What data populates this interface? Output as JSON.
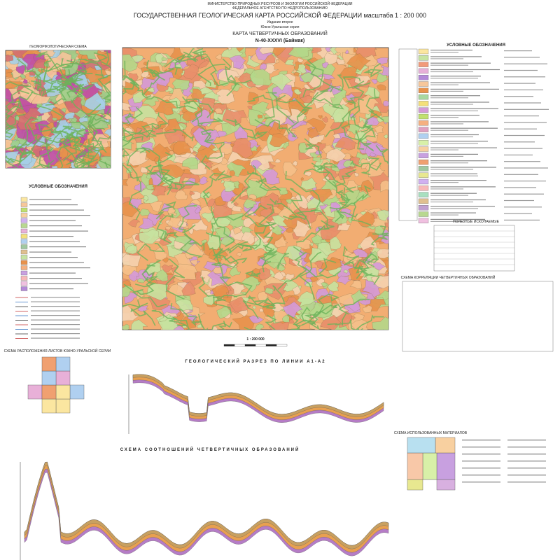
{
  "header": {
    "ministry": "МИНИСТЕРСТВО ПРИРОДНЫХ РЕСУРСОВ И ЭКОЛОГИИ РОССИЙСКОЙ ФЕДЕРАЦИИ",
    "agency": "ФЕДЕРАЛЬНОЕ АГЕНТСТВО ПО НЕДРОПОЛЬЗОВАНИЮ",
    "title": "ГОСУДАРСТВЕННАЯ ГЕОЛОГИЧЕСКАЯ КАРТА РОССИЙСКОЙ ФЕДЕРАЦИИ масштаба 1 : 200 000",
    "edition": "Издание второе",
    "series": "Южно-Уральская серия",
    "map_title": "КАРТА ЧЕТВЕРТИЧНЫХ ОБРАЗОВАНИЙ",
    "sheet": "N-40-XXXVI (Баймак)"
  },
  "geomorph_scheme": {
    "title": "ГЕОМОРФОЛОГИЧЕСКАЯ СХЕМА"
  },
  "left_legend": {
    "title": "УСЛОВНЫЕ ОБОЗНАЧЕНИЯ"
  },
  "right_legend": {
    "title": "УСЛОВНЫЕ ОБОЗНАЧЕНИЯ"
  },
  "minerals": {
    "title": "ПОЛЕЗНЫЕ ИСКОПАЕМЫЕ"
  },
  "correlation": {
    "title": "СХЕМА КОРРЕЛЯЦИИ ЧЕТВЕРТИЧНЫХ ОБРАЗОВАНИЙ"
  },
  "scale": "1 : 200 000",
  "section": {
    "title": "ГЕОЛОГИЧЕСКИЙ РАЗРЕЗ ПО ЛИНИИ А1-А2"
  },
  "relations": {
    "title": "СХЕМА СООТНОШЕНИЙ ЧЕТВЕРТИЧНЫХ ОБРАЗОВАНИЙ"
  },
  "materials": {
    "title": "СХЕМА ИСПОЛЬЗОВАННЫХ МАТЕРИАЛОВ"
  },
  "sheet_scheme": {
    "title": "СХЕМА РАСПОЛОЖЕНИЯ ЛИСТОВ ЮЖНО-УРАЛЬСКОЙ СЕРИИ"
  }
}
